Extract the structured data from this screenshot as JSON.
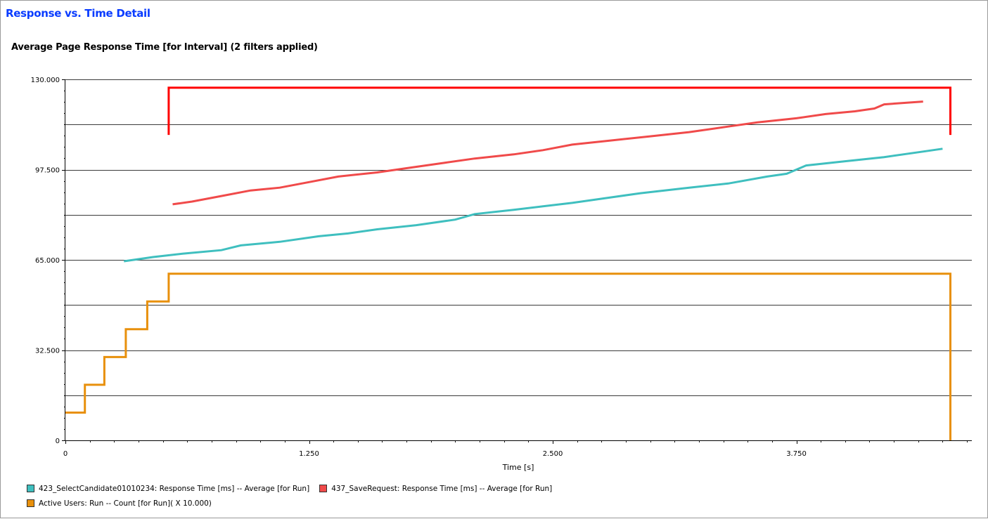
{
  "panel": {
    "title": "Response vs. Time Detail"
  },
  "chart_data": {
    "type": "line",
    "title": "Average Page Response Time [for Interval] (2 filters applied)",
    "xlabel": "Time [s]",
    "ylabel": "",
    "xlim": [
      0,
      4.65
    ],
    "ylim": [
      0,
      130
    ],
    "x_ticks": [
      "0",
      "1.250",
      "2.500",
      "3.750"
    ],
    "x_tick_values": [
      0,
      1.25,
      2.5,
      3.75
    ],
    "y_ticks": [
      "0",
      "32.500",
      "65.000",
      "97.500",
      "130.000"
    ],
    "y_tick_values": [
      0,
      32.5,
      65,
      97.5,
      130
    ],
    "grid": true,
    "legend_position": "bottom-left",
    "series": [
      {
        "name": "423_SelectCandidate01010234: Response Time [ms] -- Average [for Run]",
        "color": "#3fbfbf",
        "step": false,
        "x": [
          0.3,
          0.45,
          0.6,
          0.8,
          0.9,
          1.1,
          1.3,
          1.45,
          1.6,
          1.8,
          2.0,
          2.1,
          2.3,
          2.45,
          2.6,
          2.8,
          2.95,
          3.2,
          3.4,
          3.6,
          3.7,
          3.8,
          4.0,
          4.2,
          4.4,
          4.5
        ],
        "y": [
          64.5,
          66.0,
          67.2,
          68.5,
          70.2,
          71.5,
          73.5,
          74.5,
          76.0,
          77.5,
          79.5,
          81.5,
          83.0,
          84.3,
          85.5,
          87.5,
          89.0,
          91.0,
          92.5,
          95.0,
          96.0,
          99.0,
          100.5,
          102.0,
          104.0,
          105.0
        ]
      },
      {
        "name": "437_SaveRequest: Response Time [ms] -- Average [for Run]",
        "color": "#f04a4a",
        "step": false,
        "x": [
          0.55,
          0.65,
          0.8,
          0.95,
          1.1,
          1.25,
          1.4,
          1.6,
          1.75,
          1.95,
          2.1,
          2.3,
          2.45,
          2.6,
          2.8,
          3.0,
          3.2,
          3.4,
          3.55,
          3.75,
          3.9,
          4.05,
          4.15,
          4.2,
          4.4
        ],
        "y": [
          85.0,
          86.0,
          88.0,
          90.0,
          91.0,
          93.0,
          95.0,
          96.5,
          98.0,
          100.0,
          101.5,
          103.0,
          104.5,
          106.5,
          108.0,
          109.5,
          111.0,
          113.0,
          114.5,
          116.0,
          117.5,
          118.5,
          119.5,
          121.0,
          122.0
        ]
      },
      {
        "name": "Active Users: Run -- Count [for Run]( X 10.000)",
        "color": "#e8900c",
        "step": true,
        "x": [
          0,
          0.1,
          0.2,
          0.31,
          0.42,
          0.53,
          4.54,
          4.54
        ],
        "y": [
          10,
          20,
          30,
          40,
          50,
          60,
          60,
          0
        ]
      },
      {
        "name": "",
        "color": "#ff0000",
        "step": true,
        "x": [
          0.53,
          0.53,
          4.54,
          4.54
        ],
        "y": [
          110,
          127,
          127,
          110
        ]
      }
    ]
  }
}
